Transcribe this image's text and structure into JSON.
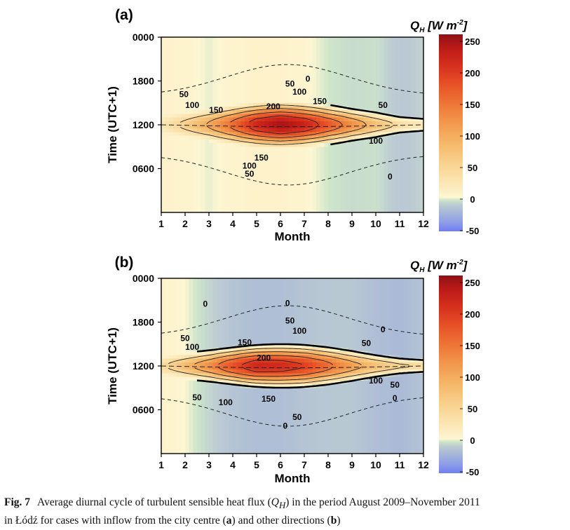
{
  "chart_data": [
    {
      "panel": "(a)",
      "type": "heatmap",
      "subtype": "filled-contour",
      "xlabel": "Month",
      "ylabel": "Time (UTC+1)",
      "x_ticks": [
        "1",
        "2",
        "3",
        "4",
        "5",
        "6",
        "7",
        "8",
        "9",
        "10",
        "11",
        "12"
      ],
      "y_ticks": [
        "0000",
        "1800",
        "1200",
        "0600"
      ],
      "xlim": [
        1,
        12
      ],
      "ylim_hours": [
        24,
        0
      ],
      "colorbar_title": "Q_H [W m^-2]",
      "colorbar_ticks": [
        "250",
        "200",
        "150",
        "100",
        "50",
        "0",
        "-50"
      ],
      "colorbar_range": [
        -50,
        250
      ],
      "contour_levels": [
        0,
        50,
        100,
        150,
        200
      ],
      "peak": {
        "month": 5.8,
        "hour": 12,
        "value": 260
      },
      "noon_peak_by_month": [
        {
          "month": 1,
          "value": 25
        },
        {
          "month": 2,
          "value": 60
        },
        {
          "month": 3,
          "value": 105
        },
        {
          "month": 4,
          "value": 160
        },
        {
          "month": 5,
          "value": 225
        },
        {
          "month": 6,
          "value": 255
        },
        {
          "month": 7,
          "value": 230
        },
        {
          "month": 8,
          "value": 180
        },
        {
          "month": 9,
          "value": 130
        },
        {
          "month": 10,
          "value": 80
        },
        {
          "month": 11,
          "value": 40
        },
        {
          "month": 12,
          "value": 25
        }
      ],
      "night_minimum_by_month": [
        {
          "month": 1,
          "value": 10
        },
        {
          "month": 2,
          "value": 8
        },
        {
          "month": 3,
          "value": 2
        },
        {
          "month": 4,
          "value": 8
        },
        {
          "month": 5,
          "value": 10
        },
        {
          "month": 6,
          "value": 10
        },
        {
          "month": 7,
          "value": 6
        },
        {
          "month": 8,
          "value": 0
        },
        {
          "month": 9,
          "value": -3
        },
        {
          "month": 10,
          "value": -2
        },
        {
          "month": 11,
          "value": -10
        },
        {
          "month": 12,
          "value": -6
        }
      ],
      "contour_labels": [
        {
          "text": "0",
          "month": 7.15,
          "hour": 18.3
        },
        {
          "text": "50",
          "month": 6.4,
          "hour": 17.6
        },
        {
          "text": "100",
          "month": 6.8,
          "hour": 16.5
        },
        {
          "text": "150",
          "month": 7.65,
          "hour": 15.2
        },
        {
          "text": "50",
          "month": 1.95,
          "hour": 16.2
        },
        {
          "text": "100",
          "month": 2.3,
          "hour": 14.7
        },
        {
          "text": "150",
          "month": 3.3,
          "hour": 14.0
        },
        {
          "text": "200",
          "month": 5.7,
          "hour": 14.5
        },
        {
          "text": "50",
          "month": 10.3,
          "hour": 14.7
        },
        {
          "text": "100",
          "month": 10.0,
          "hour": 9.8
        },
        {
          "text": "150",
          "month": 5.2,
          "hour": 7.5
        },
        {
          "text": "100",
          "month": 4.7,
          "hour": 6.4
        },
        {
          "text": "50",
          "month": 4.7,
          "hour": 5.3
        },
        {
          "text": "0",
          "month": 10.6,
          "hour": 4.9
        }
      ]
    },
    {
      "panel": "(b)",
      "type": "heatmap",
      "subtype": "filled-contour",
      "xlabel": "Month",
      "ylabel": "Time (UTC+1)",
      "x_ticks": [
        "1",
        "2",
        "3",
        "4",
        "5",
        "6",
        "7",
        "8",
        "9",
        "10",
        "11",
        "12"
      ],
      "y_ticks": [
        "0000",
        "1800",
        "1200",
        "0600"
      ],
      "xlim": [
        1,
        12
      ],
      "ylim_hours": [
        24,
        0
      ],
      "colorbar_title": "Q_H [W m^-2]",
      "colorbar_ticks": [
        "250",
        "200",
        "150",
        "100",
        "50",
        "0",
        "-50"
      ],
      "colorbar_range": [
        -50,
        250
      ],
      "contour_levels": [
        0,
        50,
        100,
        150,
        200
      ],
      "peak": {
        "month": 5.3,
        "hour": 12,
        "value": 225
      },
      "noon_peak_by_month": [
        {
          "month": 1,
          "value": 40
        },
        {
          "month": 2,
          "value": 85
        },
        {
          "month": 3,
          "value": 130
        },
        {
          "month": 4,
          "value": 185
        },
        {
          "month": 5,
          "value": 225
        },
        {
          "month": 6,
          "value": 220
        },
        {
          "month": 7,
          "value": 200
        },
        {
          "month": 8,
          "value": 160
        },
        {
          "month": 9,
          "value": 115
        },
        {
          "month": 10,
          "value": 80
        },
        {
          "month": 11,
          "value": 55
        },
        {
          "month": 12,
          "value": 45
        }
      ],
      "night_minimum_by_month": [
        {
          "month": 1,
          "value": 10
        },
        {
          "month": 2,
          "value": 4
        },
        {
          "month": 3,
          "value": -5
        },
        {
          "month": 4,
          "value": -12
        },
        {
          "month": 5,
          "value": -15
        },
        {
          "month": 6,
          "value": -15
        },
        {
          "month": 7,
          "value": -12
        },
        {
          "month": 8,
          "value": -10
        },
        {
          "month": 9,
          "value": -10
        },
        {
          "month": 10,
          "value": -15
        },
        {
          "month": 11,
          "value": -18
        },
        {
          "month": 12,
          "value": -12
        }
      ],
      "contour_labels": [
        {
          "text": "0",
          "month": 2.85,
          "hour": 20.5
        },
        {
          "text": "0",
          "month": 6.3,
          "hour": 20.6
        },
        {
          "text": "0",
          "month": 10.3,
          "hour": 17.0
        },
        {
          "text": "50",
          "month": 6.4,
          "hour": 18.2
        },
        {
          "text": "100",
          "month": 6.8,
          "hour": 16.8
        },
        {
          "text": "50",
          "month": 9.6,
          "hour": 15.1
        },
        {
          "text": "50",
          "month": 2.0,
          "hour": 15.8
        },
        {
          "text": "100",
          "month": 2.3,
          "hour": 14.6
        },
        {
          "text": "150",
          "month": 4.5,
          "hour": 15.2
        },
        {
          "text": "200",
          "month": 5.3,
          "hour": 13.1
        },
        {
          "text": "100",
          "month": 10.0,
          "hour": 10.0
        },
        {
          "text": "50",
          "month": 10.8,
          "hour": 9.4
        },
        {
          "text": "0",
          "month": 10.8,
          "hour": 7.6
        },
        {
          "text": "50",
          "month": 2.5,
          "hour": 7.7
        },
        {
          "text": "100",
          "month": 3.7,
          "hour": 7.0
        },
        {
          "text": "150",
          "month": 5.5,
          "hour": 7.5
        },
        {
          "text": "50",
          "month": 6.7,
          "hour": 5.0
        },
        {
          "text": "0",
          "month": 6.2,
          "hour": 3.8
        }
      ]
    }
  ],
  "colorbar": {
    "stops": [
      {
        "value": -50,
        "color": "#6f7df0"
      },
      {
        "value": -35,
        "color": "#8f9fe6"
      },
      {
        "value": -20,
        "color": "#a6b6d8"
      },
      {
        "value": -8,
        "color": "#bccbd2"
      },
      {
        "value": 0,
        "color": "#cfe6ca"
      },
      {
        "value": 4,
        "color": "#fdf6d2"
      },
      {
        "value": 30,
        "color": "#fbe4b0"
      },
      {
        "value": 60,
        "color": "#f8d08c"
      },
      {
        "value": 90,
        "color": "#f5b768"
      },
      {
        "value": 120,
        "color": "#f29a4e"
      },
      {
        "value": 150,
        "color": "#ee7838"
      },
      {
        "value": 180,
        "color": "#e85528"
      },
      {
        "value": 210,
        "color": "#d8321e"
      },
      {
        "value": 240,
        "color": "#bd1a18"
      },
      {
        "value": 270,
        "color": "#8e1015"
      }
    ]
  },
  "caption": {
    "figure_label": "Fig. 7",
    "text_1": "Average diurnal cycle of turbulent sensible heat flux (",
    "symbol": "Q",
    "symbol_sub": "H",
    "text_2": ") in the period August 2009–November 2011",
    "text_3": "in Łódź for cases with inflow from the city centre (",
    "panel_a": "a",
    "text_4": ") and other directions (",
    "panel_b": "b",
    "text_5": ")"
  }
}
